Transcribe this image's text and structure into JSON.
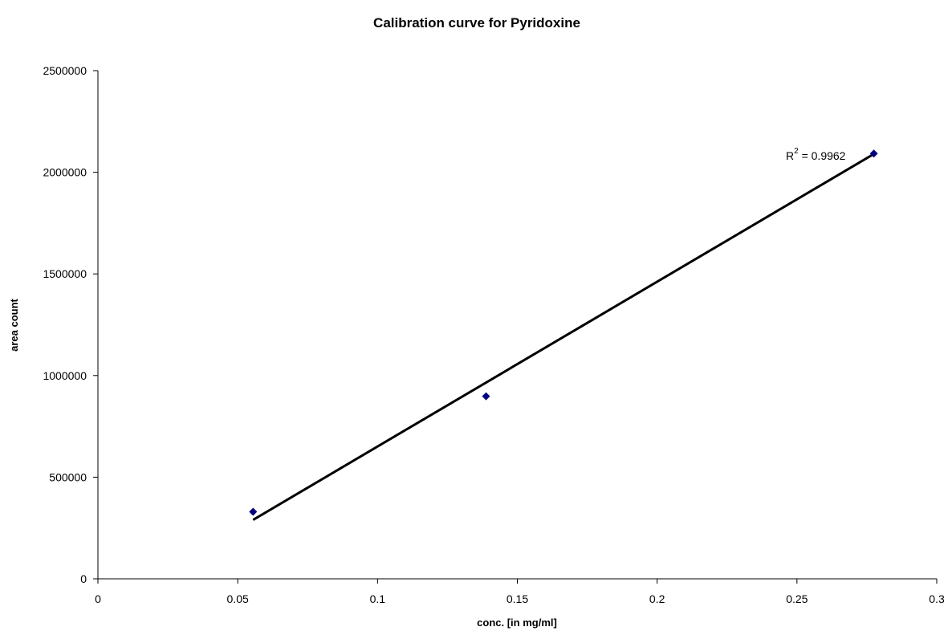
{
  "chart_data": {
    "type": "scatter",
    "title": "Calibration curve for Pyridoxine",
    "xlabel": "conc. [in mg/ml]",
    "ylabel": "area count",
    "xlim": [
      0,
      0.3
    ],
    "ylim": [
      0,
      2500000
    ],
    "x_ticks": [
      "0",
      "0.05",
      "0.1",
      "0.15",
      "0.2",
      "0.25",
      "0.3"
    ],
    "y_ticks": [
      "0",
      "500000",
      "1000000",
      "1500000",
      "2000000",
      "2500000"
    ],
    "grid": false,
    "legend": "none",
    "series": [
      {
        "points": [
          {
            "x": 0.0555,
            "y": 330000
          },
          {
            "x": 0.1388,
            "y": 898000
          },
          {
            "x": 0.2775,
            "y": 2092000
          }
        ],
        "color": "#00007f"
      }
    ],
    "trendline": {
      "type": "linear",
      "from": {
        "x": 0.0555,
        "y": 290000
      },
      "to": {
        "x": 0.2775,
        "y": 2090000
      },
      "color": "#000000"
    },
    "annotation": {
      "r_base": "R",
      "r_sup": "2",
      "r_value": " = 0.9962"
    }
  }
}
